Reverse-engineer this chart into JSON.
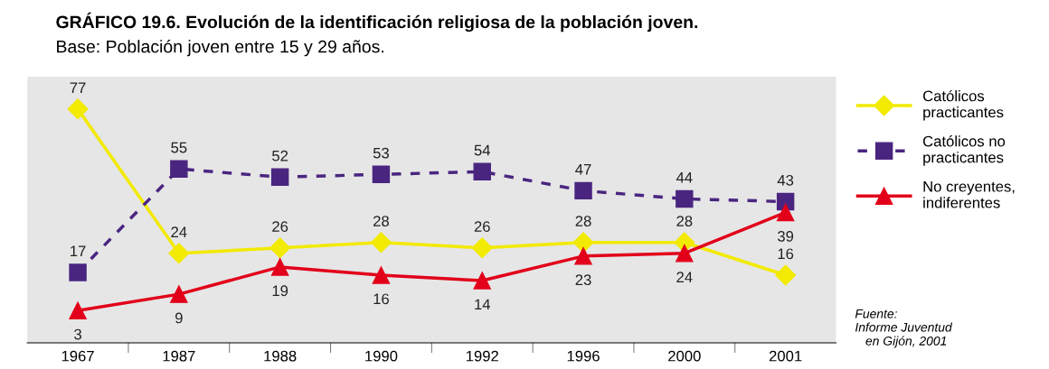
{
  "chart_data": {
    "type": "line",
    "title": "GRÁFICO 19.6. Evolución de la identificación religiosa de la población joven.",
    "subtitle": "Base: Población joven entre 15 y 29 años.",
    "categories": [
      "1967",
      "1987",
      "1988",
      "1990",
      "1992",
      "1996",
      "2000",
      "2001"
    ],
    "series": [
      {
        "name": "Católicos\npracticantes",
        "color": "#f2ea00",
        "marker": "diamond",
        "line_style": "solid",
        "values": [
          77,
          24,
          26,
          28,
          26,
          28,
          28,
          16
        ]
      },
      {
        "name": "Católicos no\npracticantes",
        "color": "#4a2580",
        "marker": "square",
        "line_style": "dashed",
        "values": [
          17,
          55,
          52,
          53,
          54,
          47,
          44,
          43
        ]
      },
      {
        "name": "No creyentes,\nindiferentes",
        "color": "#e2001a",
        "marker": "triangle",
        "line_style": "solid",
        "values": [
          3,
          9,
          19,
          16,
          14,
          23,
          24,
          39
        ]
      }
    ],
    "data_labels": true,
    "grid": false,
    "legend": "right",
    "annotations": [
      "Fuente:\nInforme Juventud\n   en Gijón, 2001"
    ]
  }
}
